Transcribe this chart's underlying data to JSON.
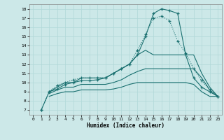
{
  "title": "",
  "xlabel": "Humidex (Indice chaleur)",
  "bg_color": "#cce8e8",
  "line_color": "#1a7070",
  "grid_color": "#b0d8d8",
  "xlim": [
    -0.5,
    23.5
  ],
  "ylim": [
    6.5,
    18.5
  ],
  "xticks": [
    0,
    1,
    2,
    3,
    4,
    5,
    6,
    7,
    8,
    9,
    10,
    11,
    12,
    13,
    14,
    15,
    16,
    17,
    18,
    19,
    20,
    21,
    22,
    23
  ],
  "yticks": [
    7,
    8,
    9,
    10,
    11,
    12,
    13,
    14,
    15,
    16,
    17,
    18
  ],
  "lines": [
    {
      "x": [
        1,
        2,
        3,
        4,
        5,
        6,
        7,
        8,
        9,
        10,
        11,
        12,
        13,
        14,
        15,
        16,
        17,
        18,
        19,
        20,
        21,
        22,
        23
      ],
      "y": [
        7,
        9,
        9.7,
        10,
        10.3,
        10.5,
        10.5,
        10.5,
        10.5,
        11,
        11.5,
        12,
        13.5,
        15.2,
        17,
        17.2,
        16.7,
        14.5,
        13.2,
        11.5,
        10.2,
        9.2,
        8.5
      ],
      "marker": "+",
      "dotted": true
    },
    {
      "x": [
        1,
        2,
        3,
        4,
        5,
        6,
        7,
        8,
        9,
        10,
        11,
        12,
        13,
        14,
        15,
        16,
        17,
        18,
        19,
        20,
        21,
        22,
        23
      ],
      "y": [
        7,
        9,
        9.3,
        9.8,
        10,
        10.2,
        10.2,
        10.3,
        10.5,
        11,
        11.5,
        12,
        13,
        15,
        17.5,
        18,
        17.8,
        17.5,
        13,
        10.5,
        9.5,
        9.0,
        8.5
      ],
      "marker": "+",
      "dotted": false
    },
    {
      "x": [
        2,
        3,
        4,
        5,
        6,
        7,
        8,
        9,
        10,
        11,
        12,
        13,
        14,
        15,
        16,
        17,
        18,
        19,
        20,
        21,
        22,
        23
      ],
      "y": [
        9,
        9.5,
        10,
        10,
        10.5,
        10.5,
        10.5,
        10.5,
        11,
        11.5,
        12,
        13,
        13.5,
        13,
        13,
        13,
        13,
        13,
        13,
        11,
        9.5,
        8.5
      ],
      "marker": null,
      "dotted": false
    },
    {
      "x": [
        2,
        3,
        4,
        5,
        6,
        7,
        8,
        9,
        10,
        11,
        12,
        13,
        14,
        15,
        16,
        17,
        18,
        19,
        20,
        21,
        22,
        23
      ],
      "y": [
        8.8,
        9.2,
        9.5,
        9.5,
        9.8,
        9.8,
        9.8,
        9.8,
        10,
        10.3,
        10.8,
        11.2,
        11.5,
        11.5,
        11.5,
        11.5,
        11.5,
        11.5,
        11.5,
        10.5,
        9.2,
        8.5
      ],
      "marker": null,
      "dotted": false
    },
    {
      "x": [
        2,
        3,
        4,
        5,
        6,
        7,
        8,
        9,
        10,
        11,
        12,
        13,
        14,
        15,
        16,
        17,
        18,
        19,
        20,
        21,
        22,
        23
      ],
      "y": [
        8.5,
        8.8,
        9,
        9,
        9.2,
        9.2,
        9.2,
        9.2,
        9.3,
        9.5,
        9.8,
        10,
        10,
        10,
        10,
        10,
        10,
        10,
        9.8,
        9,
        8.5,
        8.5
      ],
      "marker": null,
      "dotted": false
    }
  ]
}
